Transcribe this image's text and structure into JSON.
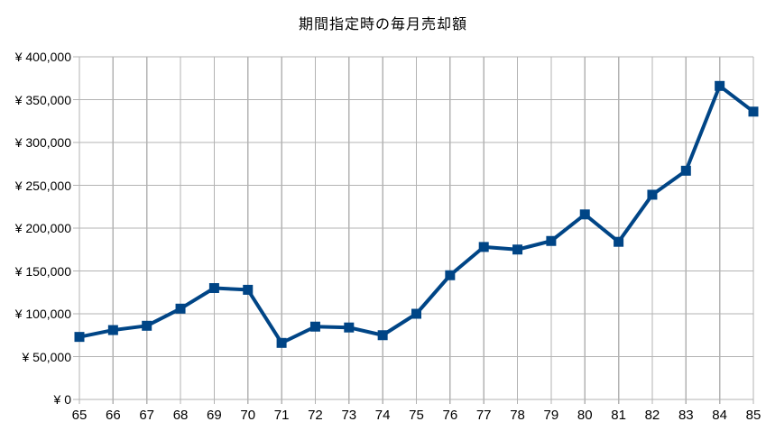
{
  "chart": {
    "title": "期間指定時の毎月売却額"
  },
  "chart_data": {
    "type": "line",
    "title": "期間指定時の毎月売却額",
    "categories": [
      "65",
      "66",
      "67",
      "68",
      "69",
      "70",
      "71",
      "72",
      "73",
      "74",
      "75",
      "76",
      "77",
      "78",
      "79",
      "80",
      "81",
      "82",
      "83",
      "84",
      "85"
    ],
    "series": [
      {
        "name": "毎月売却額",
        "values": [
          73000,
          81000,
          86000,
          106000,
          130000,
          128000,
          66000,
          85000,
          84000,
          75000,
          100000,
          145000,
          178000,
          175000,
          185000,
          216000,
          184000,
          239000,
          267000,
          366000,
          336000
        ]
      }
    ],
    "xlabel": "",
    "ylabel": "",
    "ylim": [
      0,
      400000
    ],
    "ytick_step": 50000,
    "ytick_labels": [
      "¥ 0",
      "¥ 50,000",
      "¥ 100,000",
      "¥ 150,000",
      "¥ 200,000",
      "¥ 250,000",
      "¥ 300,000",
      "¥ 350,000",
      "¥ 400,000"
    ],
    "grid": "both",
    "legend_position": "none",
    "marker": "square",
    "colors": {
      "series_line": "#004586",
      "gridline": "#b3b3b3",
      "axis_line": "#b3b3b3",
      "label_text": "#000000",
      "background": "#ffffff"
    }
  }
}
